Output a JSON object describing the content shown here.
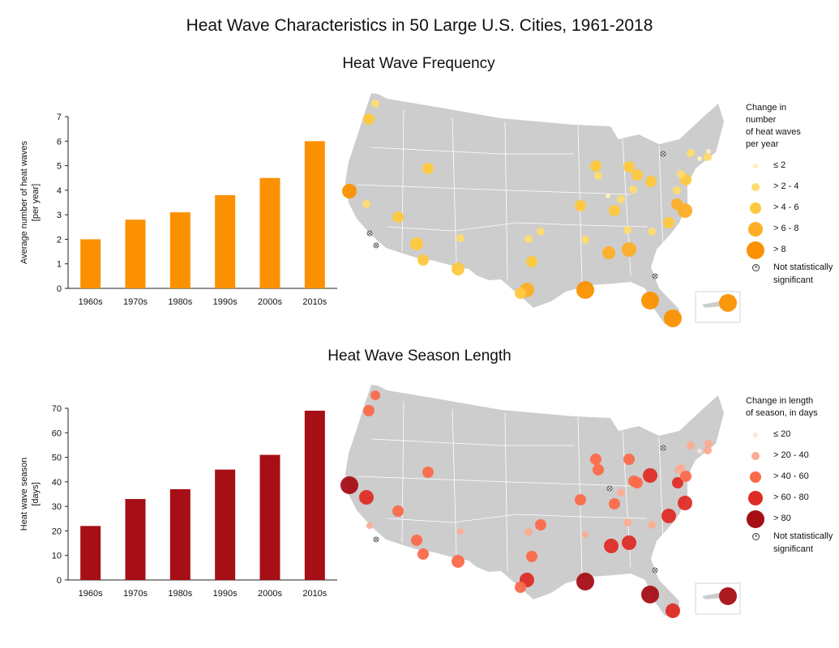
{
  "title": "Heat Wave Characteristics in 50 Large U.S. Cities, 1961-2018",
  "colors": {
    "orange": "#fb9100",
    "darkred": "#a50f15",
    "land": "#cdcdcd"
  },
  "frequency": {
    "section_title": "Heat Wave Frequency",
    "legend": {
      "title_lines": [
        "Change in",
        "number",
        "of heat waves",
        "per year"
      ],
      "items": [
        {
          "label": "≤ 2",
          "color": "#fff1b8"
        },
        {
          "label": "> 2 - 4",
          "color": "#fedc6d"
        },
        {
          "label": "> 4 - 6",
          "color": "#fec83d"
        },
        {
          "label": "> 6 - 8",
          "color": "#fdae25"
        },
        {
          "label": "> 8",
          "color": "#fb9100"
        }
      ],
      "ns_label_lines": [
        "Not statistically",
        "significant"
      ]
    }
  },
  "season": {
    "section_title": "Heat Wave Season Length",
    "legend": {
      "title_lines": [
        "Change in length",
        "of season, in days"
      ],
      "items": [
        {
          "label": "≤ 20",
          "color": "#fde3d6"
        },
        {
          "label": "> 20 - 40",
          "color": "#fcac91"
        },
        {
          "label": "> 40 - 60",
          "color": "#fb6a4a"
        },
        {
          "label": "> 60 - 80",
          "color": "#de2d26"
        },
        {
          "label": "> 80",
          "color": "#a50f15"
        }
      ],
      "ns_label_lines": [
        "Not statistically",
        "significant"
      ]
    }
  },
  "chart_data": [
    {
      "type": "bar",
      "categories": [
        "1960s",
        "1970s",
        "1980s",
        "1990s",
        "2000s",
        "2010s"
      ],
      "values": [
        2.0,
        2.8,
        3.1,
        3.8,
        4.5,
        6.0
      ],
      "ylabel_lines": [
        "Average number of heat waves",
        "[per year]"
      ],
      "ylim": [
        0,
        7
      ],
      "yticks": [
        0,
        1,
        2,
        3,
        4,
        5,
        6,
        7
      ],
      "color": "#fb9100"
    },
    {
      "type": "bar",
      "categories": [
        "1960s",
        "1970s",
        "1980s",
        "1990s",
        "2000s",
        "2010s"
      ],
      "values": [
        22,
        33,
        37,
        45,
        51,
        69
      ],
      "ylabel_lines": [
        "Heat wave season",
        "[days]"
      ],
      "ylim": [
        0,
        70
      ],
      "yticks": [
        0,
        10,
        20,
        30,
        40,
        50,
        60,
        70
      ],
      "color": "#a50f15"
    }
  ]
}
